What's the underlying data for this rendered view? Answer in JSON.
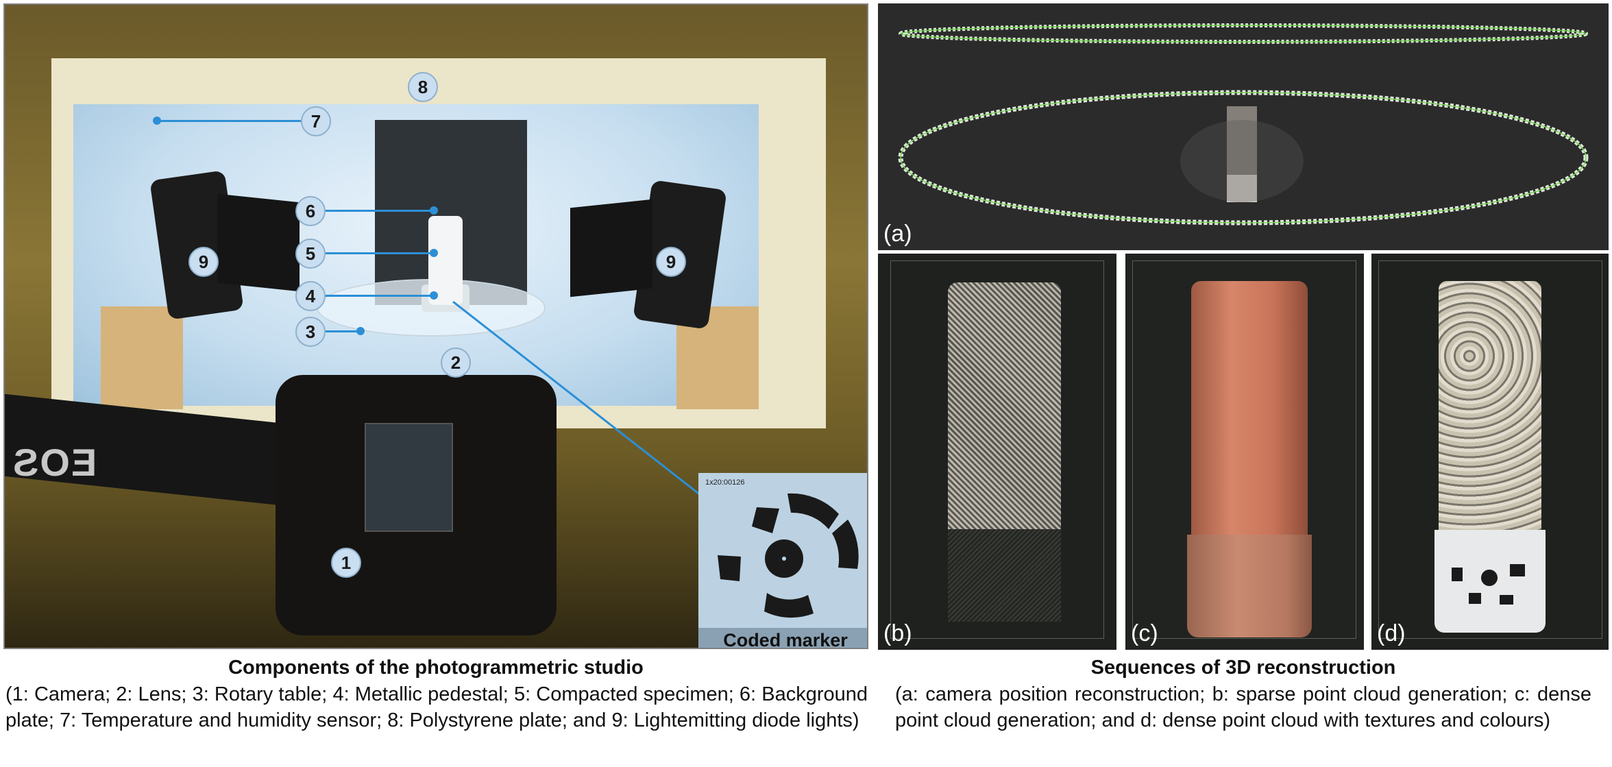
{
  "left_panel": {
    "badges": [
      "1",
      "2",
      "3",
      "4",
      "5",
      "6",
      "7",
      "8",
      "9",
      "9"
    ],
    "camera_brand": "EOS",
    "marker_code": "1x20:00126",
    "marker_caption": "Coded marker"
  },
  "right_panels": {
    "a_label": "(a)",
    "b_label": "(b)",
    "c_label": "(c)",
    "d_label": "(d)"
  },
  "captions": {
    "left_title": "Components of the photogrammetric studio",
    "left_body": "(1: Camera; 2: Lens; 3: Rotary table; 4: Metallic pedestal; 5: Compacted specimen; 6: Background plate; 7: Temperature and humidity sensor; 8: Polystyrene plate; and 9: Lightemitting diode lights)",
    "right_title": "Sequences of 3D reconstruction",
    "right_body": "(a: camera position reconstruction; b: sparse point cloud generation; c: dense point cloud generation; and d: dense point cloud with textures and colours)"
  },
  "colors": {
    "leader_blue": "#2c8fd6",
    "badge_fill": "#c9def0",
    "specimen_orange": "#c9745a"
  }
}
